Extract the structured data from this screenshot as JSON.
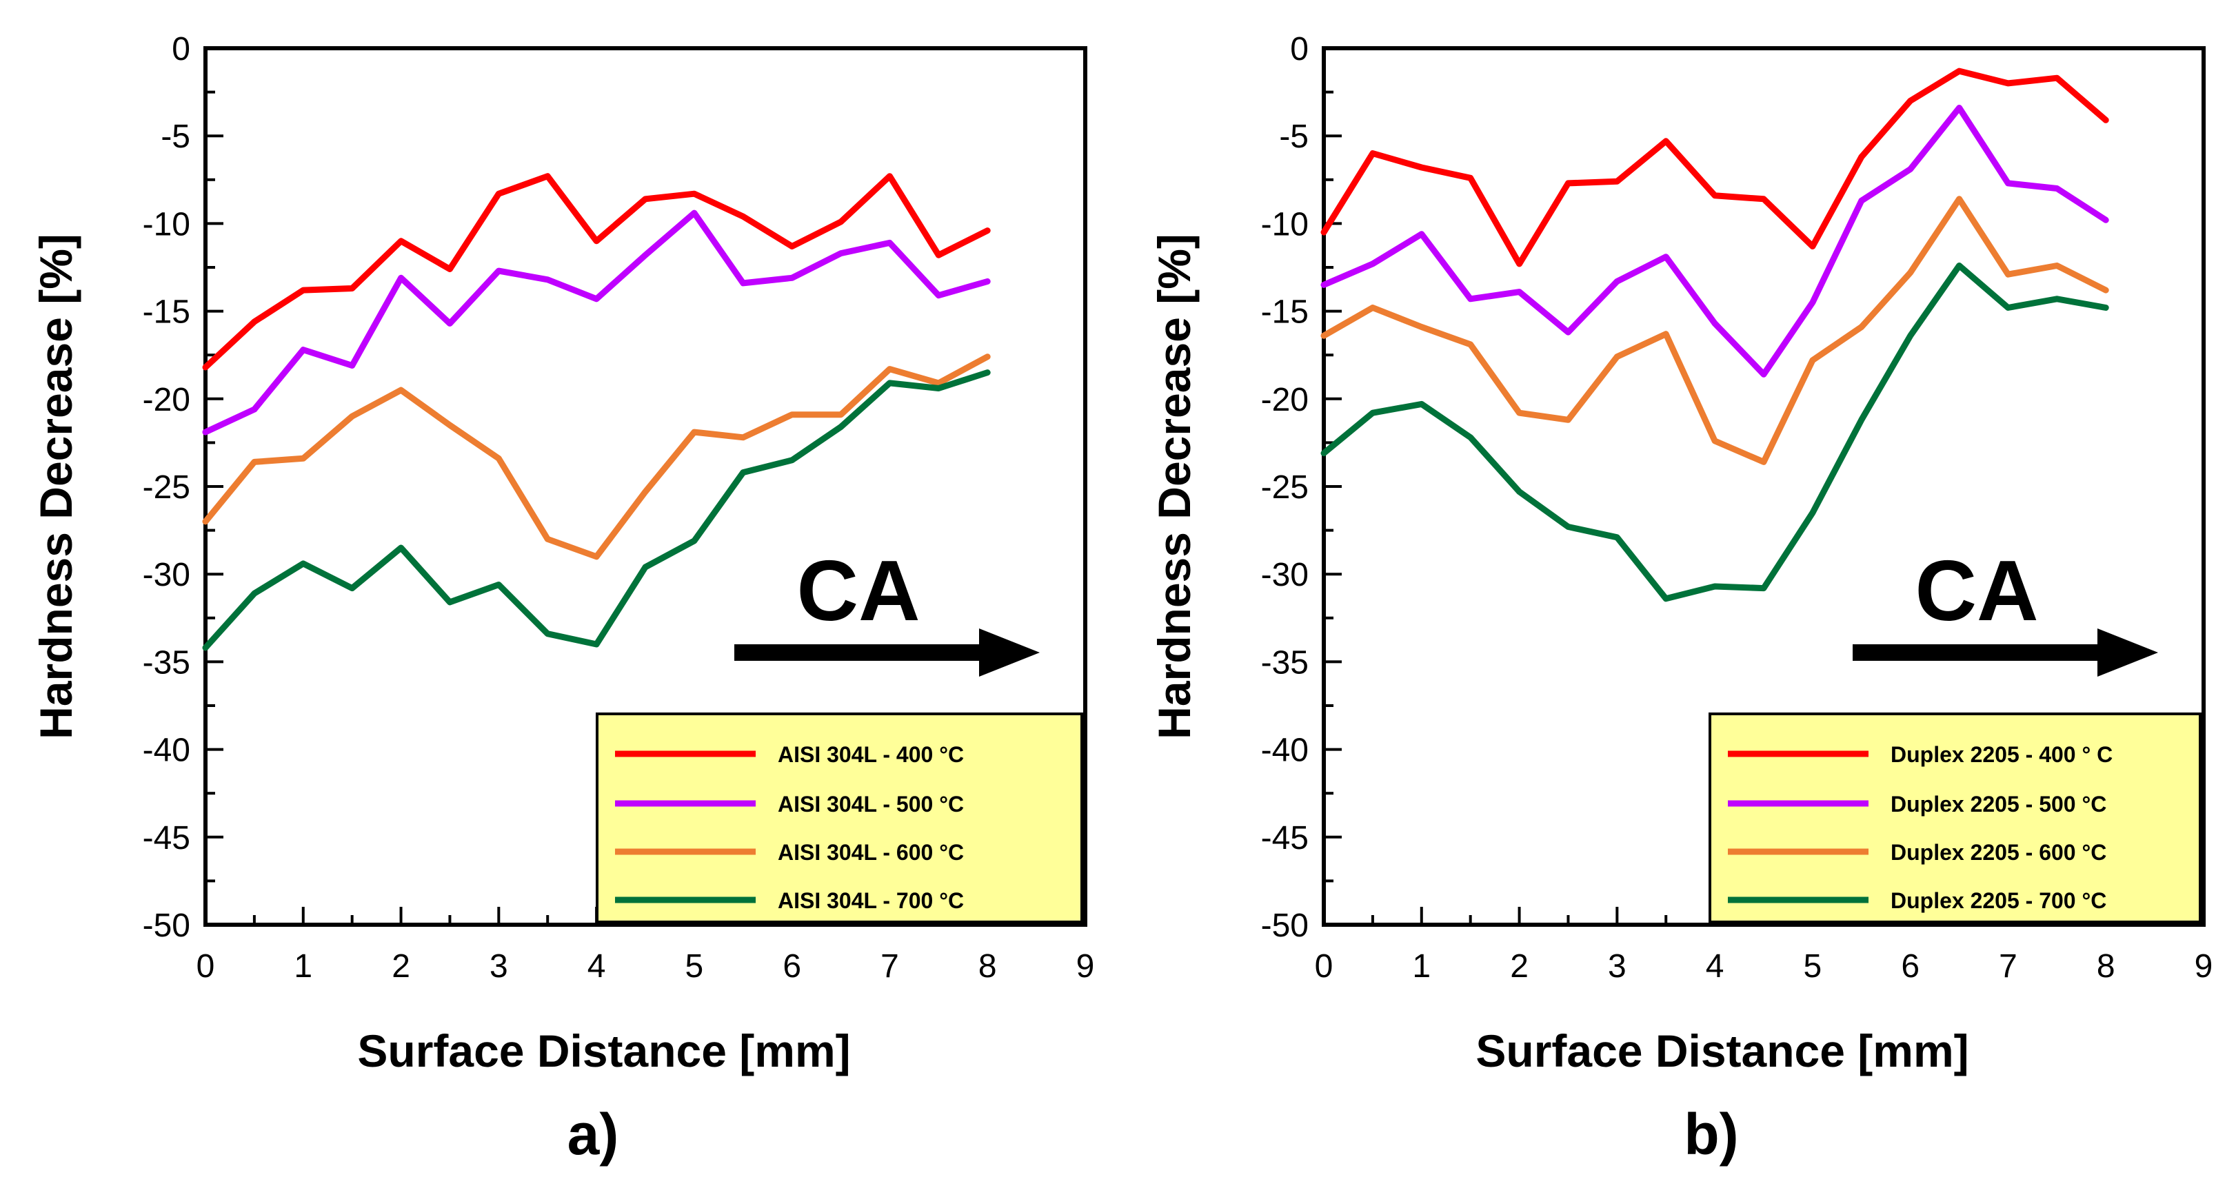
{
  "chart_data": [
    {
      "type": "line",
      "panel_label": "a)",
      "xlabel": "Surface Distance [mm]",
      "ylabel": "Hardness Decrease [%]",
      "xlim": [
        0,
        9
      ],
      "ylim": [
        -50,
        0
      ],
      "xticks": [
        "0",
        "1",
        "2",
        "3",
        "4",
        "5",
        "6",
        "7",
        "8",
        "9"
      ],
      "yticks": [
        "0",
        "-5",
        "-10",
        "-15",
        "-20",
        "-25",
        "-30",
        "-35",
        "-40",
        "-45",
        "-50"
      ],
      "annotation": "CA",
      "legend_position": "bottom-right",
      "x": [
        0,
        0.5,
        1,
        1.5,
        2,
        2.5,
        3,
        3.5,
        4,
        4.5,
        5,
        5.5,
        6,
        6.5,
        7,
        7.5,
        8
      ],
      "series": [
        {
          "name": "AISI 304L - 400 °C",
          "color": "#ff0000",
          "values": [
            -18.2,
            -15.6,
            -13.8,
            -13.7,
            -11.0,
            -12.6,
            -8.3,
            -7.3,
            -11.0,
            -8.6,
            -8.3,
            -9.6,
            -11.3,
            -9.9,
            -7.3,
            -11.8,
            -10.4
          ]
        },
        {
          "name": "AISI 304L - 500 °C",
          "color": "#bf00ff",
          "values": [
            -21.9,
            -20.6,
            -17.2,
            -18.1,
            -13.1,
            -15.7,
            -12.7,
            -13.2,
            -14.3,
            -11.8,
            -9.4,
            -13.4,
            -13.1,
            -11.7,
            -11.1,
            -14.1,
            -13.3
          ]
        },
        {
          "name": "AISI 304L - 600 °C",
          "color": "#ed7d31",
          "values": [
            -27.0,
            -23.6,
            -23.4,
            -21.0,
            -19.5,
            -21.5,
            -23.4,
            -28.0,
            -29.0,
            -25.3,
            -21.9,
            -22.2,
            -20.9,
            -20.9,
            -18.3,
            -19.1,
            -17.6
          ]
        },
        {
          "name": "AISI 304L - 700 °C",
          "color": "#00723a",
          "values": [
            -34.2,
            -31.1,
            -29.4,
            -30.8,
            -28.5,
            -31.6,
            -30.6,
            -33.4,
            -34.0,
            -29.6,
            -28.1,
            -24.2,
            -23.5,
            -21.6,
            -19.1,
            -19.4,
            -18.5
          ]
        }
      ]
    },
    {
      "type": "line",
      "panel_label": "b)",
      "xlabel": "Surface Distance [mm]",
      "ylabel": "Hardness Decrease [%]",
      "xlim": [
        0,
        9
      ],
      "ylim": [
        -50,
        0
      ],
      "xticks": [
        "0",
        "1",
        "2",
        "3",
        "4",
        "5",
        "6",
        "7",
        "8",
        "9"
      ],
      "yticks": [
        "0",
        "-5",
        "-10",
        "-15",
        "-20",
        "-25",
        "-30",
        "-35",
        "-40",
        "-45",
        "-50"
      ],
      "annotation": "CA",
      "legend_position": "bottom-right",
      "x": [
        0,
        0.5,
        1,
        1.5,
        2,
        2.5,
        3,
        3.5,
        4,
        4.5,
        5,
        5.5,
        6,
        6.5,
        7,
        7.5,
        8
      ],
      "series": [
        {
          "name": "Duplex 2205 - 400 ° C",
          "color": "#ff0000",
          "values": [
            -10.5,
            -6.0,
            -6.8,
            -7.4,
            -12.3,
            -7.7,
            -7.6,
            -5.3,
            -8.4,
            -8.6,
            -11.3,
            -6.2,
            -3.0,
            -1.3,
            -2.0,
            -1.7,
            -4.1
          ]
        },
        {
          "name": "Duplex 2205 - 500 °C",
          "color": "#bf00ff",
          "values": [
            -13.5,
            -12.3,
            -10.6,
            -14.3,
            -13.9,
            -16.2,
            -13.3,
            -11.9,
            -15.7,
            -18.6,
            -14.5,
            -8.7,
            -6.9,
            -3.4,
            -7.7,
            -8.0,
            -9.8
          ]
        },
        {
          "name": "Duplex 2205 - 600 °C",
          "color": "#ed7d31",
          "values": [
            -16.4,
            -14.8,
            -15.9,
            -16.9,
            -20.8,
            -21.2,
            -17.6,
            -16.3,
            -22.4,
            -23.6,
            -17.8,
            -15.9,
            -12.8,
            -8.6,
            -12.9,
            -12.4,
            -13.8
          ]
        },
        {
          "name": "Duplex 2205 - 700 °C",
          "color": "#00723a",
          "values": [
            -23.1,
            -20.8,
            -20.3,
            -22.2,
            -25.3,
            -27.3,
            -27.9,
            -31.4,
            -30.7,
            -30.8,
            -26.5,
            -21.2,
            -16.4,
            -12.4,
            -14.8,
            -14.3,
            -14.8
          ]
        }
      ]
    }
  ]
}
